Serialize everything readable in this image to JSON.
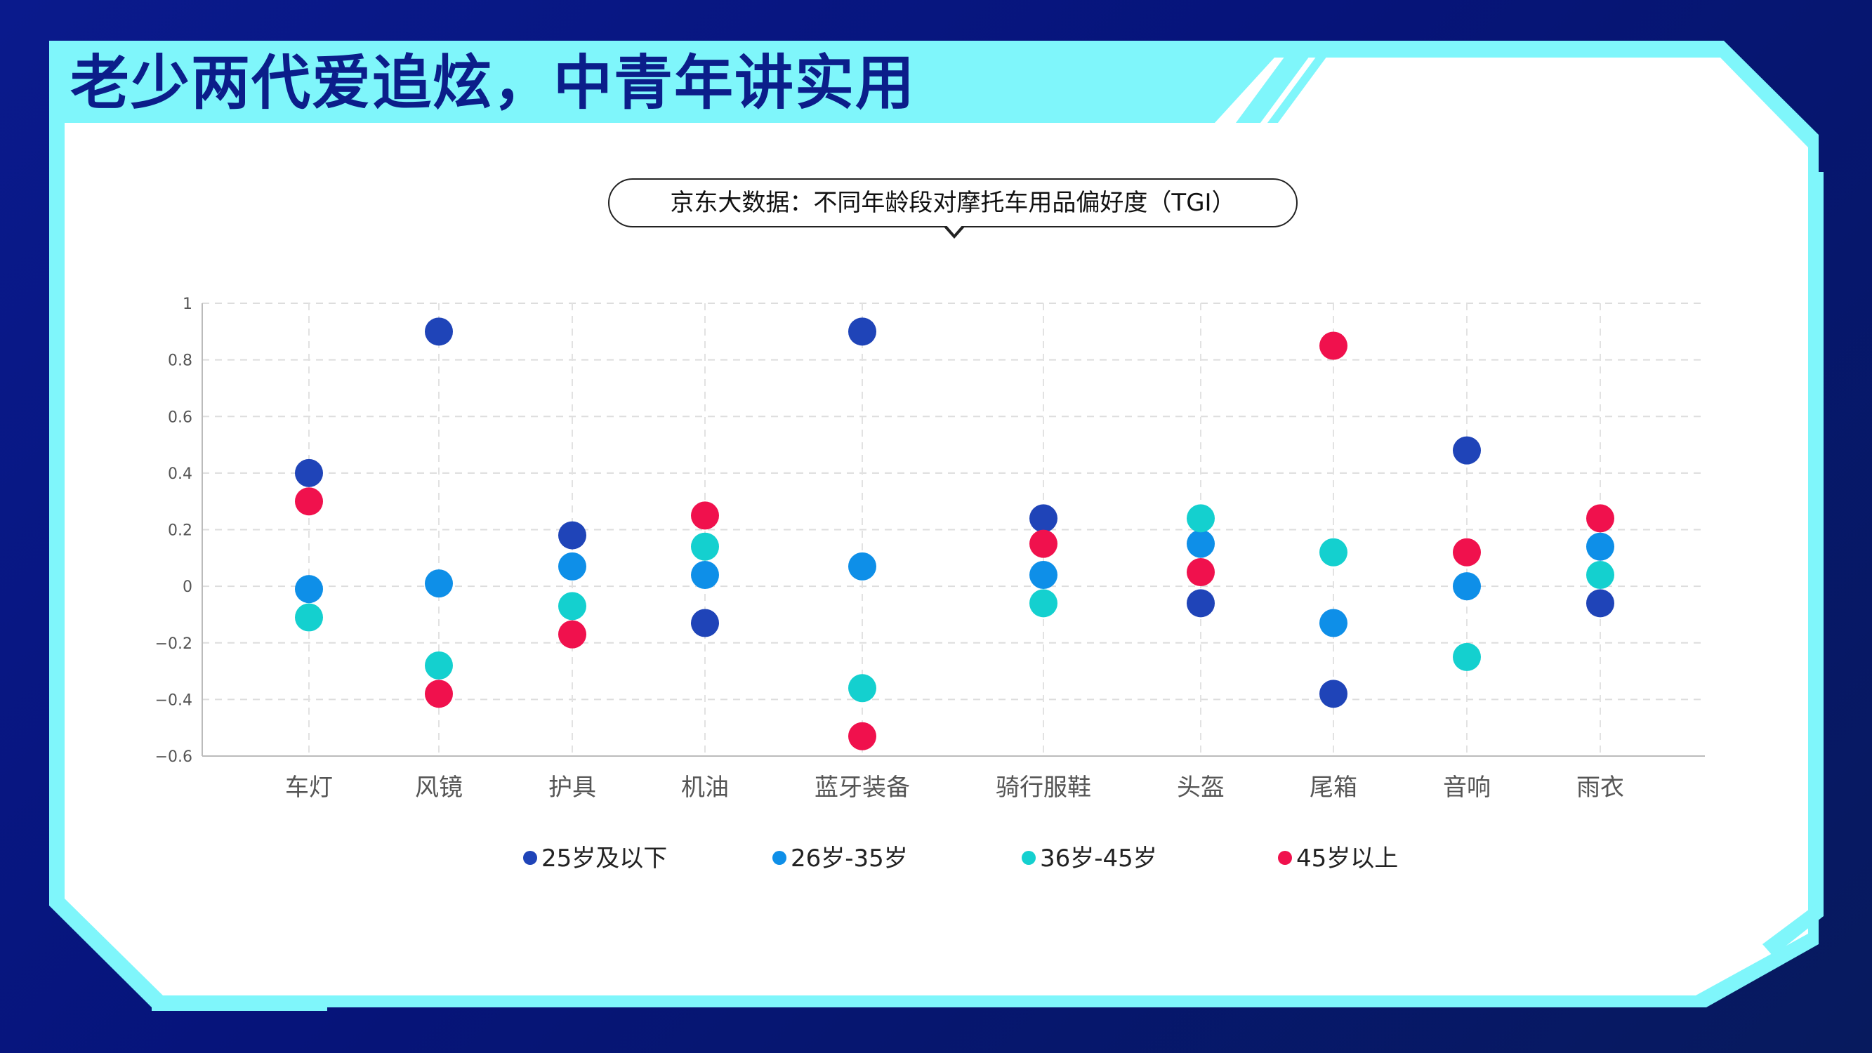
{
  "slide": {
    "title": "老少两代爱追炫，中青年讲实用"
  },
  "colors": {
    "background": "#0a1a8c",
    "accent": "#7ff6fb",
    "title": "#0b1e8a"
  },
  "chart_data": {
    "type": "scatter",
    "title": "京东大数据：不同年龄段对摩托车用品偏好度（TGI）",
    "xlabel": "",
    "ylabel": "",
    "ylim": [
      -0.6,
      1
    ],
    "yticks": [
      "1",
      "0.8",
      "0.6",
      "0.4",
      "0.2",
      "0",
      "−0.2",
      "−0.4",
      "−0.6"
    ],
    "grid": true,
    "legend_position": "bottom",
    "categories": [
      "车灯",
      "风镜",
      "护具",
      "机油",
      "蓝牙装备",
      "骑行服鞋",
      "头盔",
      "尾箱",
      "音响",
      "雨衣"
    ],
    "series": [
      {
        "name": "25岁及以下",
        "color": "#1f44b8",
        "values": [
          0.4,
          0.9,
          0.18,
          -0.13,
          0.9,
          0.24,
          -0.06,
          -0.38,
          0.48,
          -0.06
        ]
      },
      {
        "name": "26岁-35岁",
        "color": "#0e8fe8",
        "values": [
          -0.01,
          0.01,
          0.07,
          0.04,
          0.07,
          0.04,
          0.15,
          -0.13,
          0.0,
          0.14
        ]
      },
      {
        "name": "36岁-45岁",
        "color": "#14d0cf",
        "values": [
          -0.11,
          -0.28,
          -0.07,
          0.14,
          -0.36,
          -0.06,
          0.24,
          0.12,
          -0.25,
          0.04
        ]
      },
      {
        "name": "45岁以上",
        "color": "#f0114d",
        "values": [
          0.3,
          -0.38,
          -0.17,
          0.25,
          -0.53,
          0.15,
          0.05,
          0.85,
          0.12,
          0.24
        ]
      }
    ]
  }
}
